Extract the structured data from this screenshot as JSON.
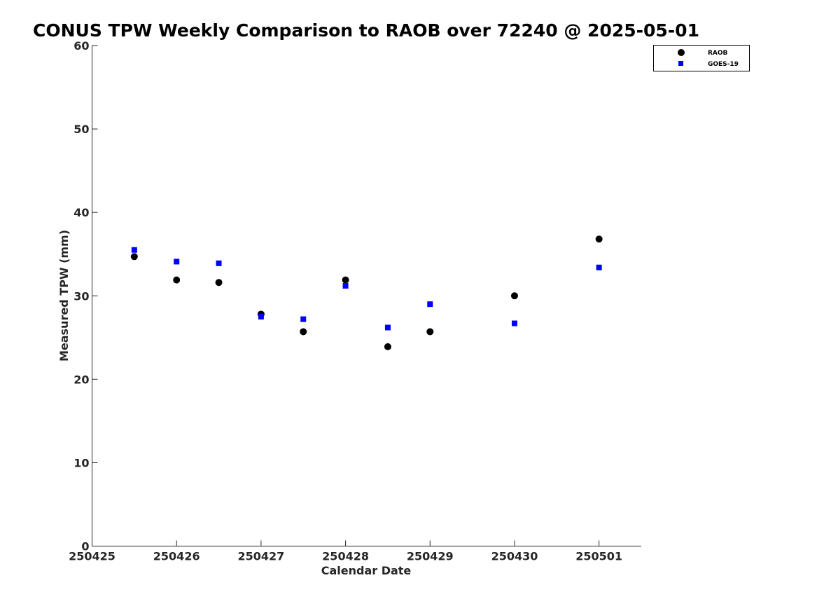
{
  "chart_data": {
    "type": "scatter",
    "title": "CONUS TPW Weekly Comparison to RAOB over 72240 @ 2025-05-01",
    "xlabel": "Calendar Date",
    "ylabel": "Measured TPW (mm)",
    "xlim": [
      0,
      6.5
    ],
    "ylim": [
      0,
      60
    ],
    "x_ticks": [
      0,
      1,
      2,
      3,
      4,
      5,
      6
    ],
    "x_tick_labels": [
      "250425",
      "250426",
      "250427",
      "250428",
      "250429",
      "250430",
      "250501"
    ],
    "y_ticks": [
      0,
      10,
      20,
      30,
      40,
      50,
      60
    ],
    "y_tick_labels": [
      "0",
      "10",
      "20",
      "30",
      "40",
      "50",
      "60"
    ],
    "grid": false,
    "legend_position": "top-right",
    "series": [
      {
        "name": "RAOB",
        "marker": "circle",
        "color": "#000000",
        "x": [
          0.5,
          1.0,
          1.5,
          2.0,
          2.5,
          3.0,
          3.5,
          4.0,
          5.0,
          6.0
        ],
        "y": [
          34.7,
          31.9,
          31.6,
          27.8,
          25.7,
          31.9,
          23.9,
          25.7,
          30.0,
          36.8
        ]
      },
      {
        "name": "GOES-19",
        "marker": "square",
        "color": "#0000ff",
        "x": [
          0.5,
          1.0,
          1.5,
          2.0,
          2.5,
          3.0,
          3.5,
          4.0,
          5.0,
          6.0
        ],
        "y": [
          35.5,
          34.1,
          33.9,
          27.5,
          27.2,
          31.2,
          26.2,
          29.0,
          26.7,
          33.4
        ]
      }
    ]
  }
}
